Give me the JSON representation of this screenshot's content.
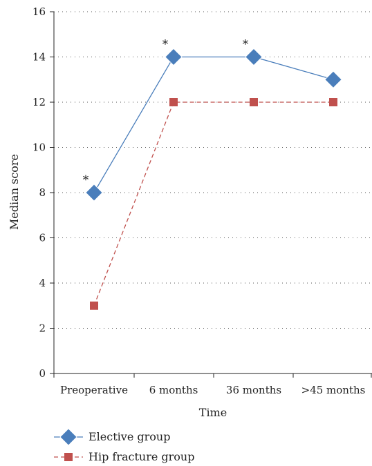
{
  "chart_data": {
    "type": "line",
    "categories": [
      "Preoperative",
      "6 months",
      "36 months",
      ">45 months"
    ],
    "series": [
      {
        "name": "Elective group",
        "values": [
          8,
          14,
          14,
          13
        ],
        "color": "#4A7EBB",
        "marker": "diamond",
        "line_style": "solid"
      },
      {
        "name": "Hip fracture group",
        "values": [
          3,
          12,
          12,
          12
        ],
        "color": "#C0504D",
        "marker": "square",
        "line_style": "dashed"
      }
    ],
    "annotations": [
      {
        "text": "*",
        "category": "Preoperative",
        "series": "Elective group"
      },
      {
        "text": "*",
        "category": "6 months",
        "series": "Elective group"
      },
      {
        "text": "*",
        "category": "36 months",
        "series": "Elective group"
      }
    ],
    "xlabel": "Time",
    "ylabel": "Median score",
    "ylim": [
      0,
      16
    ],
    "yticks": [
      0,
      2,
      4,
      6,
      8,
      10,
      12,
      14,
      16
    ],
    "grid": "horizontal dotted",
    "legend_placement": "bottom-left"
  }
}
